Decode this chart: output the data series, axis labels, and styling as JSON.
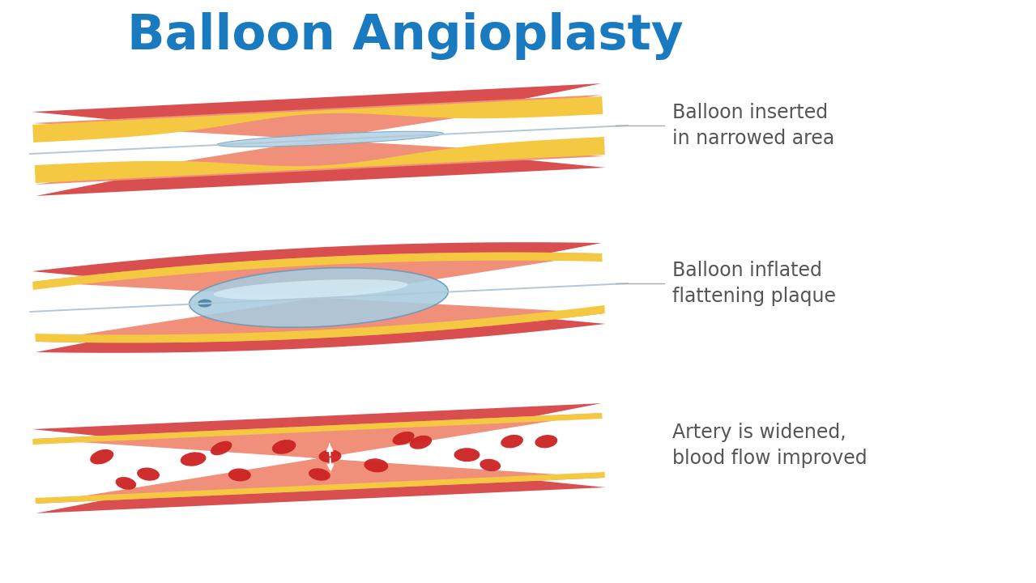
{
  "title": "Balloon Angioplasty",
  "title_color": "#1a7abf",
  "title_fontsize": 44,
  "bg_color": "#ffffff",
  "label1": "Balloon inserted\nin narrowed area",
  "label2": "Balloon inflated\nflattening plaque",
  "label3": "Artery is widened,\nblood flow improved",
  "label_color": "#555555",
  "label_fontsize": 17,
  "artery_outer_color": "#d94f4f",
  "artery_inner_color": "#f0907a",
  "artery_salmon": "#f2a58a",
  "plaque_color": "#f5c842",
  "plaque_dark": "#e8b830",
  "balloon_deflated_color": "#b8d4e8",
  "balloon_inflated_color": "#a8cce0",
  "balloon_highlight": "#d8eef8",
  "catheter_color": "#b0c8d8",
  "blood_cell_color": "#cc2222",
  "blood_cell_dark": "#aa1818",
  "arrow_color": "#ffffff",
  "line_color": "#aaaaaa"
}
